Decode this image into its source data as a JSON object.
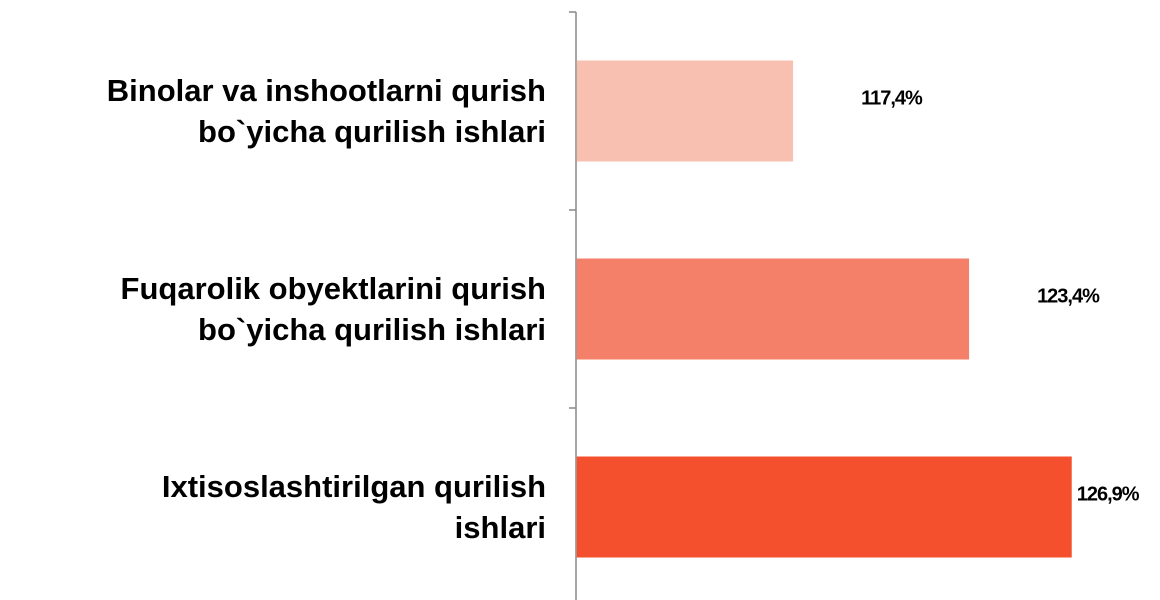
{
  "chart_data": {
    "type": "bar",
    "orientation": "horizontal",
    "categories": [
      "Binolar va inshootlarni qurish\nbo`yicha qurilish ishlari",
      "Fuqarolik obyektlarini qurish\nbo`yicha qurilish ishlari",
      "Ixtisoslashtirilgan qurilish\nishlari"
    ],
    "values": [
      117.4,
      123.4,
      126.9
    ],
    "value_labels": [
      "117,4%",
      "123,4%",
      "126,9%"
    ],
    "colors": [
      "#f7c0b0",
      "#f4806a",
      "#f4502e"
    ],
    "xlim": [
      110,
      128
    ]
  }
}
